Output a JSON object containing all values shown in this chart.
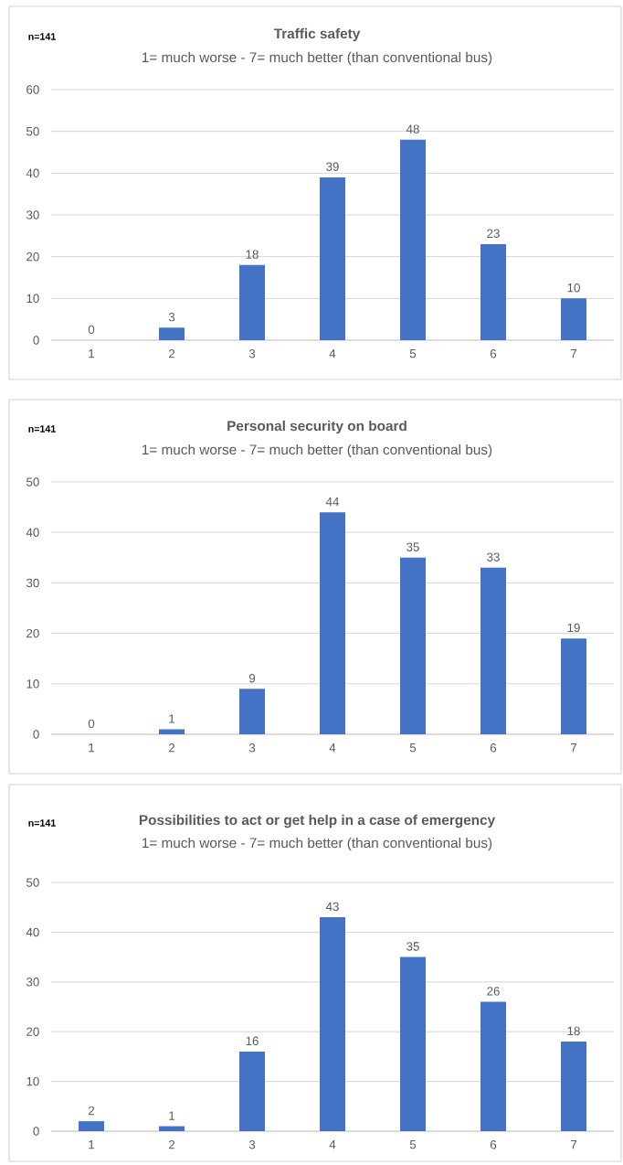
{
  "chart_data": [
    {
      "type": "bar",
      "title": "Traffic safety",
      "subtitle": "1= much worse - 7= much better (than conventional bus)",
      "annotations": [
        "n=141"
      ],
      "categories": [
        "1",
        "2",
        "3",
        "4",
        "5",
        "6",
        "7"
      ],
      "values": [
        0,
        3,
        18,
        39,
        48,
        23,
        10
      ],
      "color": "#4472c4",
      "ylim": [
        0,
        60
      ],
      "yticks": [
        0,
        10,
        20,
        30,
        40,
        50,
        60
      ],
      "grid": "y",
      "data_labels": true
    },
    {
      "type": "bar",
      "title": "Personal security on board",
      "subtitle": "1= much worse - 7= much better (than conventional bus)",
      "annotations": [
        "n=141"
      ],
      "categories": [
        "1",
        "2",
        "3",
        "4",
        "5",
        "6",
        "7"
      ],
      "values": [
        0,
        1,
        9,
        44,
        35,
        33,
        19
      ],
      "color": "#4472c4",
      "ylim": [
        0,
        50
      ],
      "yticks": [
        0,
        10,
        20,
        30,
        40,
        50
      ],
      "grid": "y",
      "data_labels": true
    },
    {
      "type": "bar",
      "title": "Possibilities to act or get help in a case of emergency",
      "subtitle": "1= much worse - 7= much better (than conventional bus)",
      "annotations": [
        "n=141"
      ],
      "categories": [
        "1",
        "2",
        "3",
        "4",
        "5",
        "6",
        "7"
      ],
      "values": [
        2,
        1,
        16,
        43,
        35,
        26,
        18
      ],
      "color": "#4472c4",
      "ylim": [
        0,
        50
      ],
      "yticks": [
        0,
        10,
        20,
        30,
        40,
        50
      ],
      "grid": "y",
      "data_labels": true
    }
  ]
}
